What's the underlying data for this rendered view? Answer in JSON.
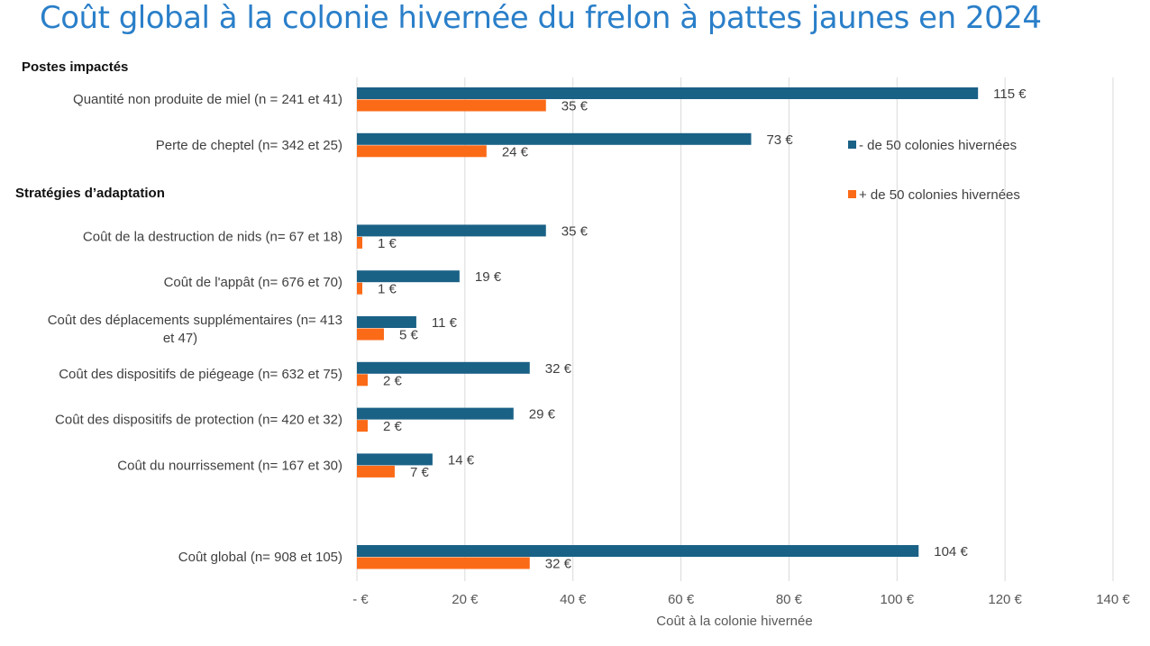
{
  "chart_data": {
    "type": "bar",
    "orientation": "horizontal",
    "title": "Coût global à la colonie hivernée du frelon à pattes jaunes en 2024",
    "xlabel": "Coût à la colonie hivernée",
    "ylabel": "",
    "xlim": [
      0,
      140
    ],
    "xticks": [
      0,
      20,
      40,
      60,
      80,
      100,
      120,
      140
    ],
    "xtick_labels": [
      "-  €",
      "20 €",
      "40 €",
      "60 €",
      "80 €",
      "100 €",
      "120 €",
      "140 €"
    ],
    "grid": "vertical",
    "legend_position": "right",
    "sections": [
      {
        "label": "Postes impactés",
        "slot": 0
      },
      {
        "label": "Stratégies d’adaptation",
        "slot": 2
      }
    ],
    "categories": [
      {
        "label": "Quantité non produite de miel (n = 241 et 41)",
        "slot": 0
      },
      {
        "label": "Perte de cheptel (n= 342 et 25)",
        "slot": 1
      },
      {
        "label": "Coût de la destruction de nids (n= 67 et 18)",
        "slot": 3
      },
      {
        "label": "Coût de l'appât (n= 676 et 70)",
        "slot": 4
      },
      {
        "label": "Coût des déplacements supplémentaires (n= 413 et 47)",
        "label_lines": [
          "Coût des déplacements supplémentaires (n= 413",
          "et 47)"
        ],
        "slot": 5
      },
      {
        "label": "Coût des dispositifs de piégeage (n= 632 et 75)",
        "slot": 6
      },
      {
        "label": "Coût des dispositifs de protection (n= 420 et 32)",
        "slot": 7
      },
      {
        "label": "Coût du nourrissement (n= 167 et 30)",
        "slot": 8
      },
      {
        "label": "Coût global (n= 908 et 105)",
        "slot": 10
      }
    ],
    "series": [
      {
        "name": "- de 50 colonies hivernées",
        "color": "#1a6186",
        "values": [
          115,
          73,
          35,
          19,
          11,
          32,
          29,
          14,
          104
        ],
        "labels": [
          "115 €",
          "73 €",
          "35 €",
          "19 €",
          "11 €",
          "32 €",
          "29 €",
          "14 €",
          "104 €"
        ]
      },
      {
        "name": "+ de 50 colonies hivernées",
        "color": "#fb6a17",
        "values": [
          35,
          24,
          1,
          1,
          5,
          2,
          2,
          7,
          32
        ],
        "labels": [
          "35 €",
          "24 €",
          "1 €",
          "1 €",
          "5 €",
          "2 €",
          "2 €",
          "7 €",
          "32 €"
        ]
      }
    ]
  }
}
